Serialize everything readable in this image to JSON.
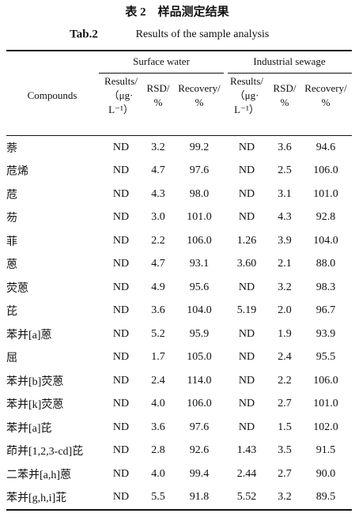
{
  "title": "表 2　样品测定结果",
  "subtitle": {
    "label": "Tab.2",
    "text": "Results of the sample analysis"
  },
  "table": {
    "groups": [
      "Surface water",
      "Industrial sewage"
    ],
    "row_header": "Compounds",
    "columns": [
      [
        "Results/",
        "（μg·",
        "L⁻¹）"
      ],
      [
        "RSD/",
        "%"
      ],
      [
        "Recovery/",
        "%"
      ],
      [
        "Results/",
        "（μg·",
        "L⁻¹）"
      ],
      [
        "RSD/",
        "%"
      ],
      [
        "Recovery/",
        "%"
      ]
    ],
    "rows": [
      [
        "萘",
        "ND",
        "3.2",
        "99.2",
        "ND",
        "3.6",
        "94.6"
      ],
      [
        "苊烯",
        "ND",
        "4.7",
        "97.6",
        "ND",
        "2.5",
        "106.0"
      ],
      [
        "苊",
        "ND",
        "4.3",
        "98.0",
        "ND",
        "3.1",
        "101.0"
      ],
      [
        "芴",
        "ND",
        "3.0",
        "101.0",
        "ND",
        "4.3",
        "92.8"
      ],
      [
        "菲",
        "ND",
        "2.2",
        "106.0",
        "1.26",
        "3.9",
        "104.0"
      ],
      [
        "蒽",
        "ND",
        "4.7",
        "93.1",
        "3.60",
        "2.1",
        "88.0"
      ],
      [
        "荧蒽",
        "ND",
        "4.9",
        "95.6",
        "ND",
        "3.2",
        "98.3"
      ],
      [
        "芘",
        "ND",
        "3.6",
        "104.0",
        "5.19",
        "2.0",
        "96.7"
      ],
      [
        "苯并[a]蒽",
        "ND",
        "5.2",
        "95.9",
        "ND",
        "1.9",
        "93.9"
      ],
      [
        "屈",
        "ND",
        "1.7",
        "105.0",
        "ND",
        "2.4",
        "95.5"
      ],
      [
        "苯并[b]荧蒽",
        "ND",
        "2.4",
        "114.0",
        "ND",
        "2.2",
        "106.0"
      ],
      [
        "苯并[k]荧蒽",
        "ND",
        "4.0",
        "106.0",
        "ND",
        "2.7",
        "101.0"
      ],
      [
        "苯并[a]芘",
        "ND",
        "3.6",
        "97.6",
        "ND",
        "1.5",
        "102.0"
      ],
      [
        "茚并[1,2,3-cd]芘",
        "ND",
        "2.8",
        "92.6",
        "1.43",
        "3.5",
        "91.5"
      ],
      [
        "二苯并[a,h]蒽",
        "ND",
        "4.0",
        "99.4",
        "2.44",
        "2.7",
        "90.0"
      ],
      [
        "苯并[g,h,i]苝",
        "ND",
        "5.5",
        "91.8",
        "5.52",
        "3.2",
        "89.5"
      ]
    ]
  }
}
